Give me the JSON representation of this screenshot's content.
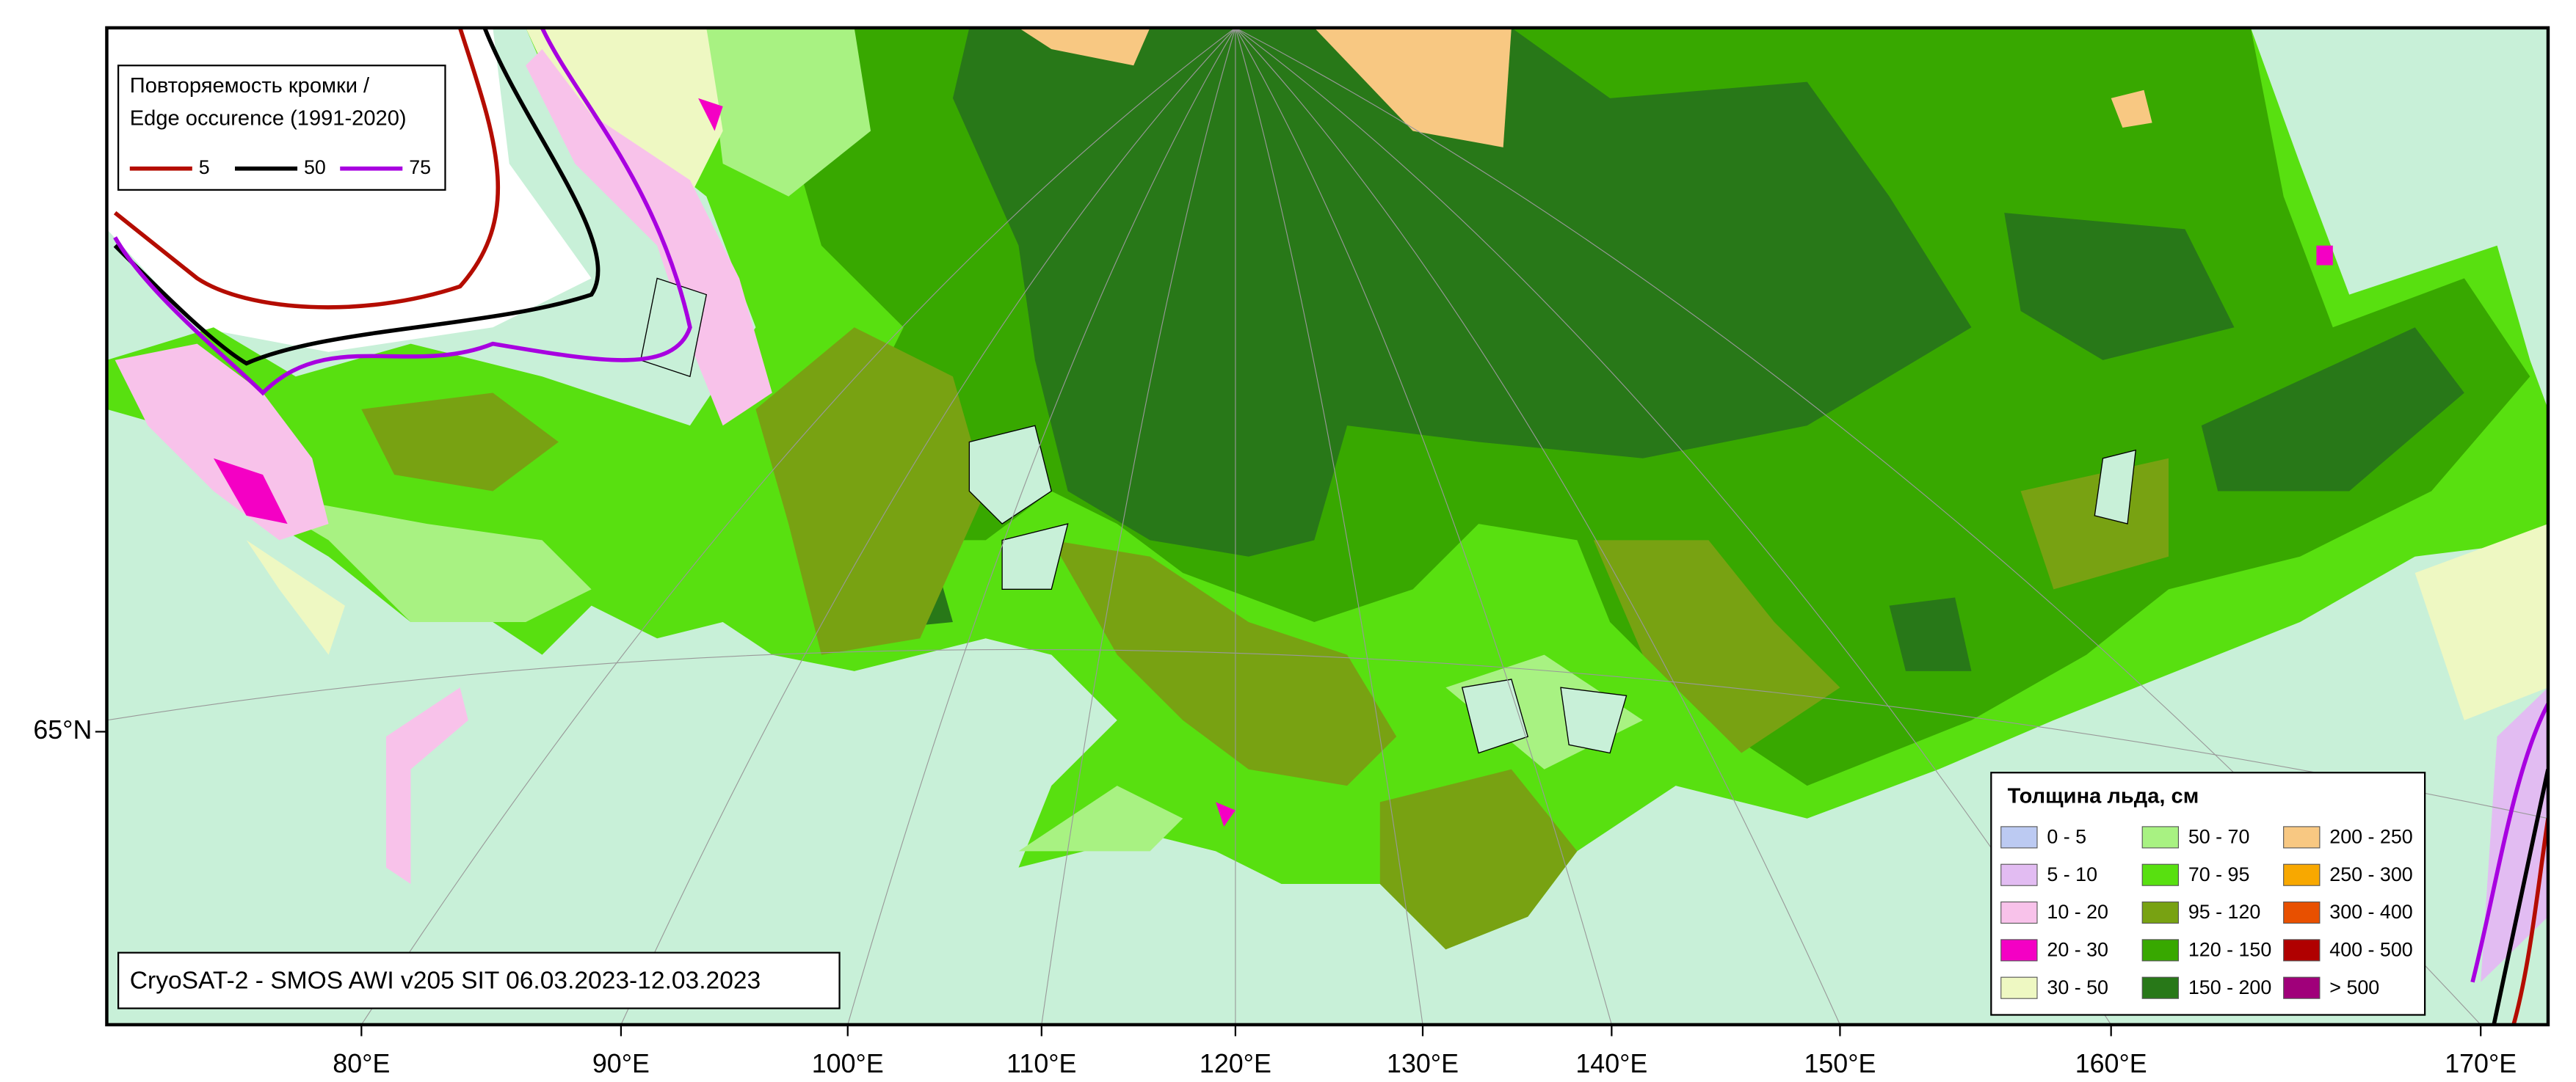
{
  "map": {
    "caption": "CryoSAT-2 - SMOS AWI v205 SIT 06.03.2023-12.03.2023",
    "x_labels": [
      "80°E",
      "90°E",
      "100°E",
      "110°E",
      "120°E",
      "130°E",
      "140°E",
      "150°E",
      "160°E",
      "170°E"
    ],
    "y_labels": [
      "65°N"
    ],
    "edge_legend": {
      "title_lines": [
        "Повторяемость кромки /",
        "Edge occurence (1991-2020)"
      ],
      "items": [
        {
          "label": 5,
          "color": "#b40c00"
        },
        {
          "label": 50,
          "color": "#000000"
        },
        {
          "label": 75,
          "color": "#a800e0"
        }
      ]
    },
    "thickness_legend": {
      "title": "Толщина льда, см",
      "classes": [
        {
          "label": "0 - 5",
          "color": "#bccaf2"
        },
        {
          "label": "5 - 10",
          "color": "#e2bcf2"
        },
        {
          "label": "10 - 20",
          "color": "#f8c2ea"
        },
        {
          "label": "20 - 30",
          "color": "#f400c4"
        },
        {
          "label": "30 - 50",
          "color": "#eef8c2"
        },
        {
          "label": "50 - 70",
          "color": "#a8f282"
        },
        {
          "label": "70 - 95",
          "color": "#58e010"
        },
        {
          "label": "95 - 120",
          "color": "#78a212"
        },
        {
          "label": "120 - 150",
          "color": "#38a800"
        },
        {
          "label": "150 - 200",
          "color": "#287818"
        },
        {
          "label": "200 - 250",
          "color": "#f8c882"
        },
        {
          "label": "250 - 300",
          "color": "#f8a800"
        },
        {
          "label": "300 - 400",
          "color": "#e85000"
        },
        {
          "label": "400 - 500",
          "color": "#b00000"
        },
        {
          "label": "> 500",
          "color": "#a0007a"
        }
      ]
    }
  }
}
